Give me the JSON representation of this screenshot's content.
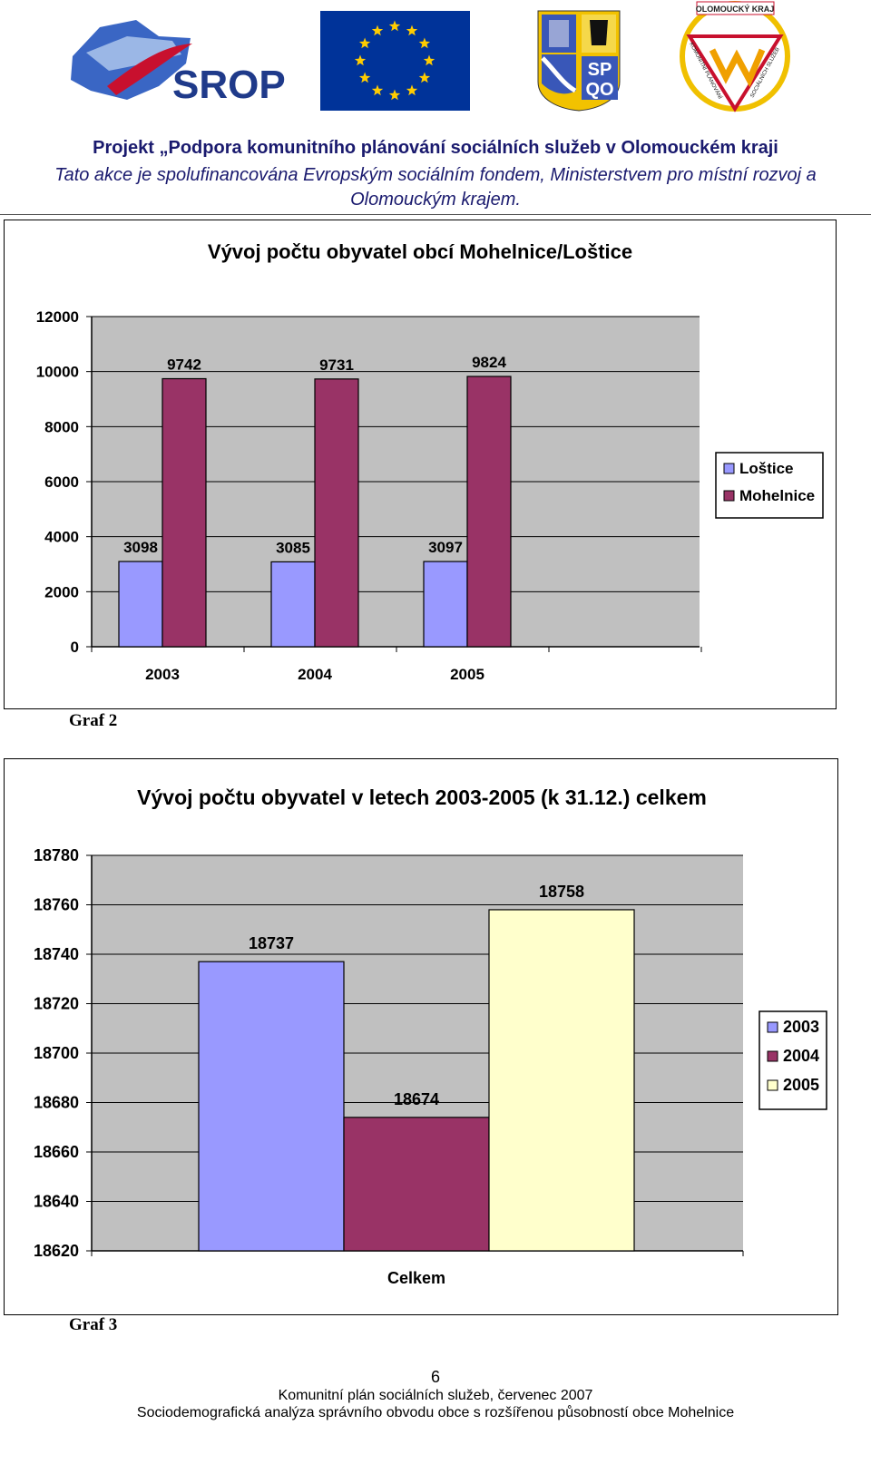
{
  "header": {
    "logos": {
      "srop": "SROP",
      "sp_qo": [
        "SP",
        "QO"
      ],
      "kraj_badge_top": "OLOMOUCKÝ KRAJ",
      "kraj_badge_left": "KOMUNITNÍ PLÁNOVÁNÍ",
      "kraj_badge_right": "SOCIÁLNÍCH SLUŽEB"
    },
    "title": "Projekt „Podpora komunitního plánování sociálních služeb v Olomouckém kraji",
    "subtitle": "Tato akce je spolufinancována Evropským sociálním fondem, Ministerstvem  pro místní rozvoj a Olomouckým krajem."
  },
  "chart_data": [
    {
      "type": "bar",
      "title": "Vývoj počtu obyvatel obcí Mohelnice/Loštice",
      "categories": [
        "2003",
        "2004",
        "2005"
      ],
      "series": [
        {
          "name": "Loštice",
          "values": [
            3098,
            3085,
            3097
          ],
          "color": "#9999ff"
        },
        {
          "name": "Mohelnice",
          "values": [
            9742,
            9731,
            9824
          ],
          "color": "#993366"
        }
      ],
      "ylim": [
        0,
        12000
      ],
      "yticks": [
        0,
        2000,
        4000,
        6000,
        8000,
        10000,
        12000
      ],
      "plot_background": "#c0c0c0",
      "legend_position": "right",
      "caption": "Graf  2"
    },
    {
      "type": "bar",
      "title": "Vývoj počtu obyvatel v letech 2003-2005 (k 31.12.) celkem",
      "categories": [
        "Celkem"
      ],
      "series": [
        {
          "name": "2003",
          "values": [
            18737
          ],
          "color": "#9999ff"
        },
        {
          "name": "2004",
          "values": [
            18674
          ],
          "color": "#993366"
        },
        {
          "name": "2005",
          "values": [
            18758
          ],
          "color": "#ffffcc"
        }
      ],
      "ylim": [
        18620,
        18780
      ],
      "yticks": [
        18620,
        18640,
        18660,
        18680,
        18700,
        18720,
        18740,
        18760,
        18780
      ],
      "plot_background": "#c0c0c0",
      "legend_position": "right",
      "caption": "Graf  3"
    }
  ],
  "footer": {
    "page_number": "6",
    "line1": "Komunitní plán sociálních služeb, červenec 2007",
    "line2": "Sociodemografická analýza správního obvodu obce s rozšířenou působností obce Mohelnice"
  }
}
